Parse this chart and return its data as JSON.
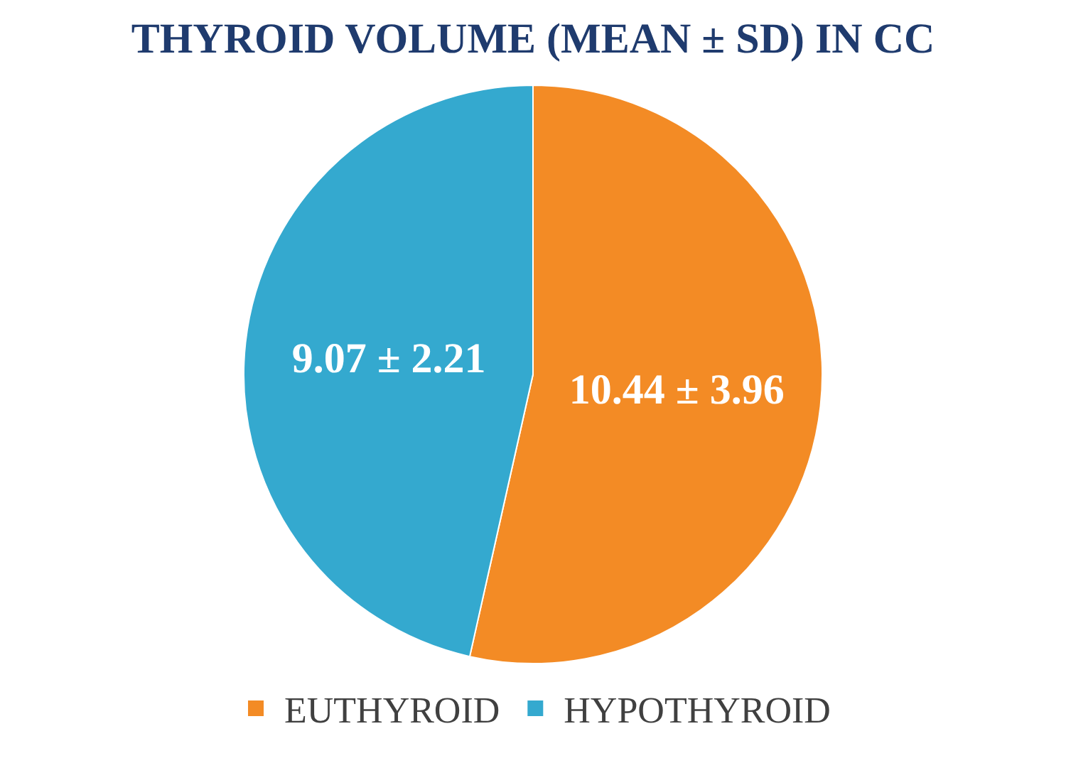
{
  "chart_data": {
    "type": "pie",
    "title": "THYROID VOLUME (MEAN ± SD) IN CC",
    "categories": [
      "EUTHYROID",
      "HYPOTHYROID"
    ],
    "values": [
      10.44,
      9.07
    ],
    "colors": [
      "#f38b25",
      "#34a9cf"
    ],
    "value_labels": [
      "10.44 ± 3.96",
      "9.07 ± 2.21"
    ],
    "legend": "bottom"
  }
}
